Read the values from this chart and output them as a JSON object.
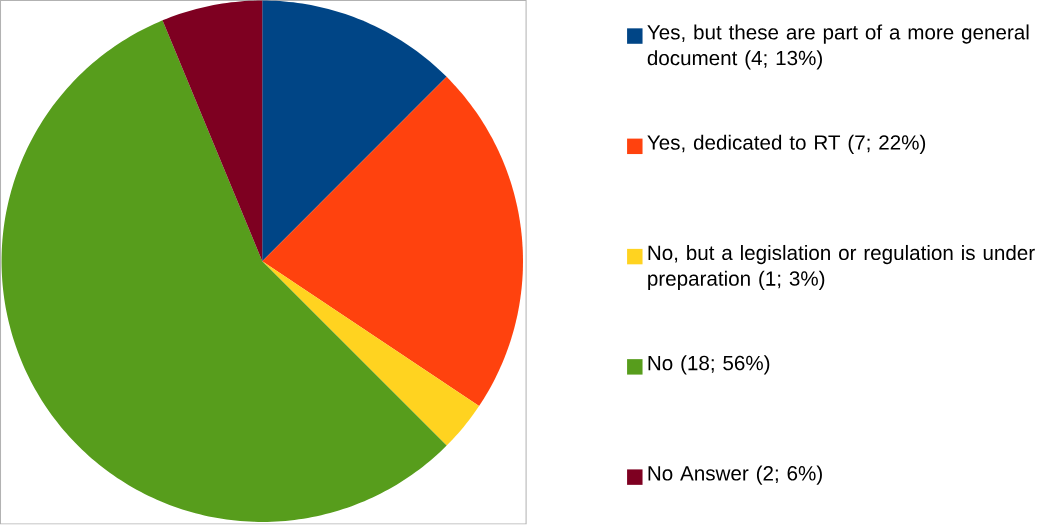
{
  "chart_data": {
    "type": "pie",
    "categories": [
      "Yes, but these are part of a more general document (4; 13%)",
      "Yes, dedicated to RT (7; 22%)",
      "No, but a legislation or regulation is under preparation (1; 3%)",
      "No (18; 56%)",
      "No Answer (2; 6%)"
    ],
    "values": [
      4,
      7,
      1,
      18,
      2
    ],
    "colors": [
      "#004586",
      "#ff420e",
      "#ffd320",
      "#579d1c",
      "#7e0021"
    ],
    "legend": "right"
  }
}
